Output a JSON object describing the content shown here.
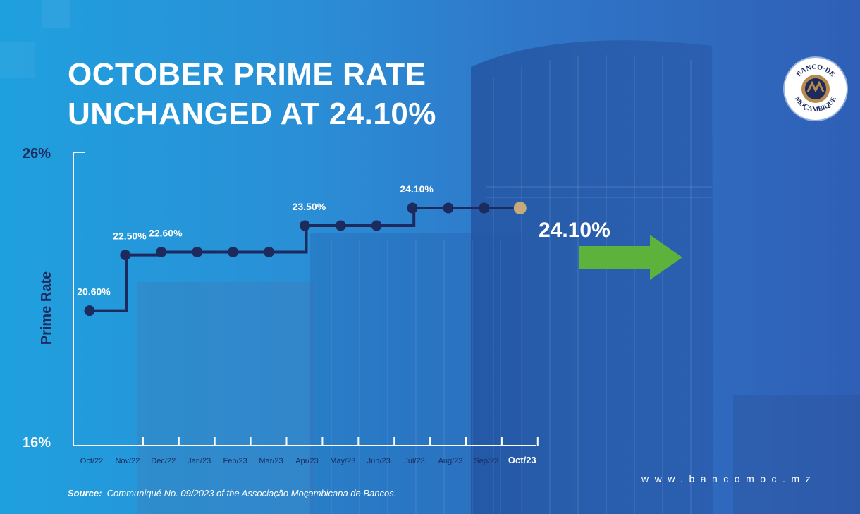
{
  "title_lines": [
    "OCTOBER PRIME RATE",
    "UNCHANGED AT 24.10%"
  ],
  "logo_text": "BANCO DE MOÇAMBIQUE",
  "source": {
    "label": "Source",
    "text": "Communiqué No. 09/2023 of the Associação Moçambicana de Bancos."
  },
  "website": "www.bancomoc.mz",
  "colors": {
    "line": "#1c2a5e",
    "highlight": "#c8a97a",
    "arrow": "#5cb23a",
    "text": "#ffffff"
  },
  "chart_data": {
    "type": "line",
    "step": true,
    "ylabel": "Prime Rate",
    "ylim": [
      16,
      26
    ],
    "yticks": [
      "16%",
      "26%"
    ],
    "categories": [
      "Oct/22",
      "Nov/22",
      "Dec/22",
      "Jan/23",
      "Feb/23",
      "Mar/23",
      "Apr/23",
      "May/23",
      "Jun/23",
      "Jul/23",
      "Aug/23",
      "Sep/23",
      "Oct/23"
    ],
    "values": [
      20.6,
      22.5,
      22.6,
      22.6,
      22.6,
      22.6,
      23.5,
      23.5,
      23.5,
      24.1,
      24.1,
      24.1,
      24.1
    ],
    "point_labels": [
      "20.60%",
      "22.50%",
      "22.60%",
      "",
      "",
      "",
      "23.50%",
      "",
      "",
      "24.10%",
      "",
      "",
      ""
    ],
    "highlight_label": "24.10%",
    "highlight_category": "Oct/23"
  }
}
